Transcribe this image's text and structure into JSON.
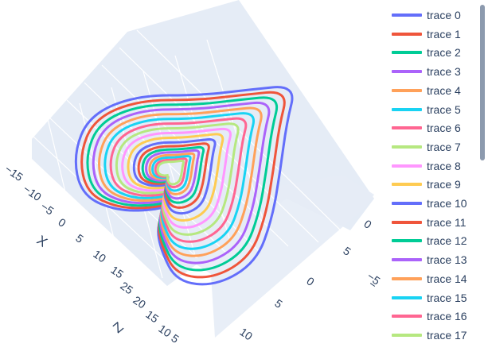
{
  "chart_data": {
    "type": "line",
    "title": "",
    "description_note": "",
    "series": [
      {
        "name": "trace 0",
        "color": "#636efa",
        "scale": 16.0
      },
      {
        "name": "trace 1",
        "color": "#EF553B",
        "scale": 15.0
      },
      {
        "name": "trace 2",
        "color": "#00cc96",
        "scale": 14.0
      },
      {
        "name": "trace 3",
        "color": "#ab63fa",
        "scale": 13.0
      },
      {
        "name": "trace 4",
        "color": "#FFA15A",
        "scale": 12.0
      },
      {
        "name": "trace 5",
        "color": "#19d3f3",
        "scale": 11.0
      },
      {
        "name": "trace 6",
        "color": "#FF6692",
        "scale": 10.0
      },
      {
        "name": "trace 7",
        "color": "#B6E880",
        "scale": 9.0
      },
      {
        "name": "trace 8",
        "color": "#FF97FF",
        "scale": 8.0
      },
      {
        "name": "trace 9",
        "color": "#FECB52",
        "scale": 7.0
      },
      {
        "name": "trace 10",
        "color": "#636efa",
        "scale": 6.0
      },
      {
        "name": "trace 11",
        "color": "#EF553B",
        "scale": 5.2
      },
      {
        "name": "trace 12",
        "color": "#00cc96",
        "scale": 4.5
      },
      {
        "name": "trace 13",
        "color": "#ab63fa",
        "scale": 3.9
      },
      {
        "name": "trace 14",
        "color": "#FFA15A",
        "scale": 3.3
      },
      {
        "name": "trace 15",
        "color": "#19d3f3",
        "scale": 2.8
      },
      {
        "name": "trace 16",
        "color": "#FF6692",
        "scale": 2.3
      },
      {
        "name": "trace 17",
        "color": "#B6E880",
        "scale": 1.9
      }
    ],
    "axes": {
      "x": {
        "title": "X",
        "ticks": [
          "−15",
          "−10",
          "−5",
          "0",
          "5",
          "10",
          "15"
        ]
      },
      "y": {
        "title": "",
        "ticks": [
          "5",
          "0",
          "−5",
          "−"
        ]
      },
      "z": {
        "title": "Z",
        "ticks": [
          "25",
          "20",
          "15",
          "10",
          "5"
        ]
      },
      "y_front": {
        "ticks": [
          "0",
          "5",
          "10"
        ]
      }
    },
    "legend": {
      "placement": "right",
      "scrollable": true
    },
    "scene_background": "#e5ecf6",
    "grid": true
  }
}
